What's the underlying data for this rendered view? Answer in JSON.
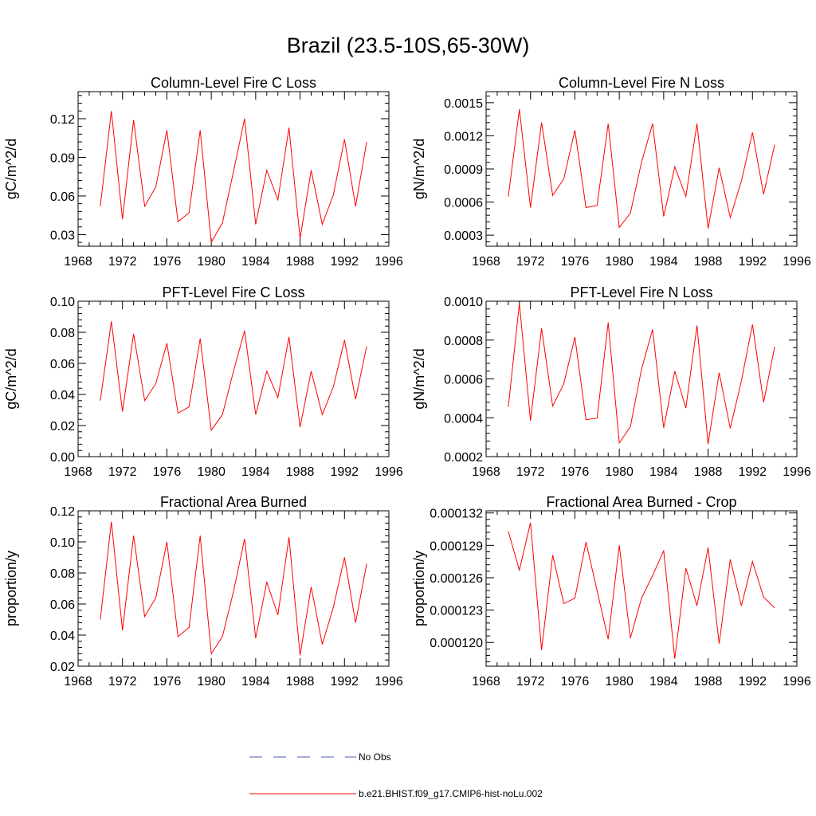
{
  "page_title": "Brazil (23.5-10S,65-30W)",
  "series_color": "#ff0000",
  "legend": [
    {
      "label": "No Obs",
      "color": "#4b59b5",
      "dash": true
    },
    {
      "label": "b.e21.BHIST.f09_g17.CMIP6-hist-noLu.002",
      "color": "#ff0000",
      "dash": false
    }
  ],
  "chart_data": [
    {
      "type": "line",
      "title": "Column-Level Fire C Loss",
      "ylabel": "gC/m^2/d",
      "xlim": [
        1968,
        1996
      ],
      "x_ticks": [
        "1968",
        "1972",
        "1976",
        "1980",
        "1984",
        "1988",
        "1992",
        "1996"
      ],
      "ylim": [
        0.021,
        0.141
      ],
      "y_ticks": [
        "0.03",
        "0.06",
        "0.09",
        "0.12"
      ],
      "y_tick_values": [
        0.03,
        0.06,
        0.09,
        0.12
      ],
      "x": [
        1970,
        1971,
        1972,
        1973,
        1974,
        1975,
        1976,
        1977,
        1978,
        1979,
        1980,
        1981,
        1982,
        1983,
        1984,
        1985,
        1986,
        1987,
        1988,
        1989,
        1990,
        1991,
        1992,
        1993,
        1994
      ],
      "series": [
        {
          "values": [
            0.052,
            0.126,
            0.042,
            0.119,
            0.052,
            0.067,
            0.111,
            0.04,
            0.047,
            0.111,
            0.024,
            0.039,
            0.079,
            0.12,
            0.038,
            0.08,
            0.057,
            0.113,
            0.027,
            0.08,
            0.038,
            0.061,
            0.104,
            0.052,
            0.102
          ]
        }
      ]
    },
    {
      "type": "line",
      "title": "Column-Level Fire N Loss",
      "ylabel": "gN/m^2/d",
      "xlim": [
        1968,
        1996
      ],
      "x_ticks": [
        "1968",
        "1972",
        "1976",
        "1980",
        "1984",
        "1988",
        "1992",
        "1996"
      ],
      "ylim": [
        0.0002,
        0.0016
      ],
      "y_ticks": [
        "0.0003",
        "0.0006",
        "0.0009",
        "0.0012",
        "0.0015"
      ],
      "y_tick_values": [
        0.0003,
        0.0006,
        0.0009,
        0.0012,
        0.0015
      ],
      "x": [
        1970,
        1971,
        1972,
        1973,
        1974,
        1975,
        1976,
        1977,
        1978,
        1979,
        1980,
        1981,
        1982,
        1983,
        1984,
        1985,
        1986,
        1987,
        1988,
        1989,
        1990,
        1991,
        1992,
        1993,
        1994
      ],
      "series": [
        {
          "values": [
            0.00065,
            0.00144,
            0.00055,
            0.00132,
            0.00066,
            0.00081,
            0.00125,
            0.00055,
            0.00057,
            0.00131,
            0.00037,
            0.0005,
            0.00096,
            0.00131,
            0.00047,
            0.00092,
            0.00065,
            0.00131,
            0.00036,
            0.00091,
            0.00046,
            0.00079,
            0.00123,
            0.00067,
            0.00112
          ]
        }
      ]
    },
    {
      "type": "line",
      "title": "PFT-Level Fire C Loss",
      "ylabel": "gC/m^2/d",
      "xlim": [
        1968,
        1996
      ],
      "x_ticks": [
        "1968",
        "1972",
        "1976",
        "1980",
        "1984",
        "1988",
        "1992",
        "1996"
      ],
      "ylim": [
        0,
        0.1
      ],
      "y_ticks": [
        "0.00",
        "0.02",
        "0.04",
        "0.06",
        "0.08",
        "0.10"
      ],
      "y_tick_values": [
        0,
        0.02,
        0.04,
        0.06,
        0.08,
        0.1
      ],
      "x": [
        1970,
        1971,
        1972,
        1973,
        1974,
        1975,
        1976,
        1977,
        1978,
        1979,
        1980,
        1981,
        1982,
        1983,
        1984,
        1985,
        1986,
        1987,
        1988,
        1989,
        1990,
        1991,
        1992,
        1993,
        1994
      ],
      "series": [
        {
          "values": [
            0.036,
            0.087,
            0.029,
            0.079,
            0.036,
            0.047,
            0.073,
            0.028,
            0.032,
            0.076,
            0.017,
            0.027,
            0.055,
            0.081,
            0.027,
            0.055,
            0.038,
            0.077,
            0.019,
            0.055,
            0.027,
            0.045,
            0.075,
            0.037,
            0.071
          ]
        }
      ]
    },
    {
      "type": "line",
      "title": "PFT-Level Fire N Loss",
      "ylabel": "gN/m^2/d",
      "xlim": [
        1968,
        1996
      ],
      "x_ticks": [
        "1968",
        "1972",
        "1976",
        "1980",
        "1984",
        "1988",
        "1992",
        "1996"
      ],
      "ylim": [
        0.0002,
        0.001
      ],
      "y_ticks": [
        "0.0002",
        "0.0004",
        "0.0006",
        "0.0008",
        "0.0010"
      ],
      "y_tick_values": [
        0.0002,
        0.0004,
        0.0006,
        0.0008,
        0.001
      ],
      "x": [
        1970,
        1971,
        1972,
        1973,
        1974,
        1975,
        1976,
        1977,
        1978,
        1979,
        1980,
        1981,
        1982,
        1983,
        1984,
        1985,
        1986,
        1987,
        1988,
        1989,
        1990,
        1991,
        1992,
        1993,
        1994
      ],
      "series": [
        {
          "values": [
            0.000455,
            0.00099,
            0.000385,
            0.00086,
            0.00046,
            0.000575,
            0.000815,
            0.00039,
            0.000398,
            0.00089,
            0.00027,
            0.000355,
            0.00065,
            0.000855,
            0.000348,
            0.00064,
            0.00045,
            0.000875,
            0.000265,
            0.000632,
            0.000345,
            0.00059,
            0.00088,
            0.00048,
            0.000765
          ]
        }
      ]
    },
    {
      "type": "line",
      "title": "Fractional Area Burned",
      "ylabel": "proportion/y",
      "xlim": [
        1968,
        1996
      ],
      "x_ticks": [
        "1968",
        "1972",
        "1976",
        "1980",
        "1984",
        "1988",
        "1992",
        "1996"
      ],
      "ylim": [
        0.02,
        0.12
      ],
      "y_ticks": [
        "0.02",
        "0.04",
        "0.06",
        "0.08",
        "0.10",
        "0.12"
      ],
      "y_tick_values": [
        0.02,
        0.04,
        0.06,
        0.08,
        0.1,
        0.12
      ],
      "x": [
        1970,
        1971,
        1972,
        1973,
        1974,
        1975,
        1976,
        1977,
        1978,
        1979,
        1980,
        1981,
        1982,
        1983,
        1984,
        1985,
        1986,
        1987,
        1988,
        1989,
        1990,
        1991,
        1992,
        1993,
        1994
      ],
      "series": [
        {
          "values": [
            0.05,
            0.113,
            0.043,
            0.104,
            0.052,
            0.064,
            0.1,
            0.039,
            0.045,
            0.104,
            0.028,
            0.039,
            0.068,
            0.102,
            0.038,
            0.074,
            0.053,
            0.103,
            0.027,
            0.071,
            0.034,
            0.058,
            0.09,
            0.048,
            0.086
          ]
        }
      ]
    },
    {
      "type": "line",
      "title": "Fractional Area Burned - Crop",
      "ylabel": "proportion/y",
      "xlim": [
        1968,
        1996
      ],
      "x_ticks": [
        "1968",
        "1972",
        "1976",
        "1980",
        "1984",
        "1988",
        "1992",
        "1996"
      ],
      "ylim": [
        0.0001178,
        0.0001322
      ],
      "y_ticks": [
        "0.000120",
        "0.000123",
        "0.000126",
        "0.000129",
        "0.000132"
      ],
      "y_tick_values": [
        0.00012,
        0.000123,
        0.000126,
        0.000129,
        0.000132
      ],
      "x": [
        1970,
        1971,
        1972,
        1973,
        1974,
        1975,
        1976,
        1977,
        1978,
        1979,
        1980,
        1981,
        1982,
        1983,
        1984,
        1985,
        1986,
        1987,
        1988,
        1989,
        1990,
        1991,
        1992,
        1993,
        1994
      ],
      "series": [
        {
          "values": [
            0.0001303,
            0.0001267,
            0.0001311,
            0.0001193,
            0.0001281,
            0.0001236,
            0.0001241,
            0.0001293,
            0.0001248,
            0.0001203,
            0.000129,
            0.0001204,
            0.0001241,
            0.0001262,
            0.0001285,
            0.0001185,
            0.0001269,
            0.0001234,
            0.0001288,
            0.0001199,
            0.0001277,
            0.0001234,
            0.0001275,
            0.0001242,
            0.0001232
          ]
        }
      ]
    }
  ]
}
